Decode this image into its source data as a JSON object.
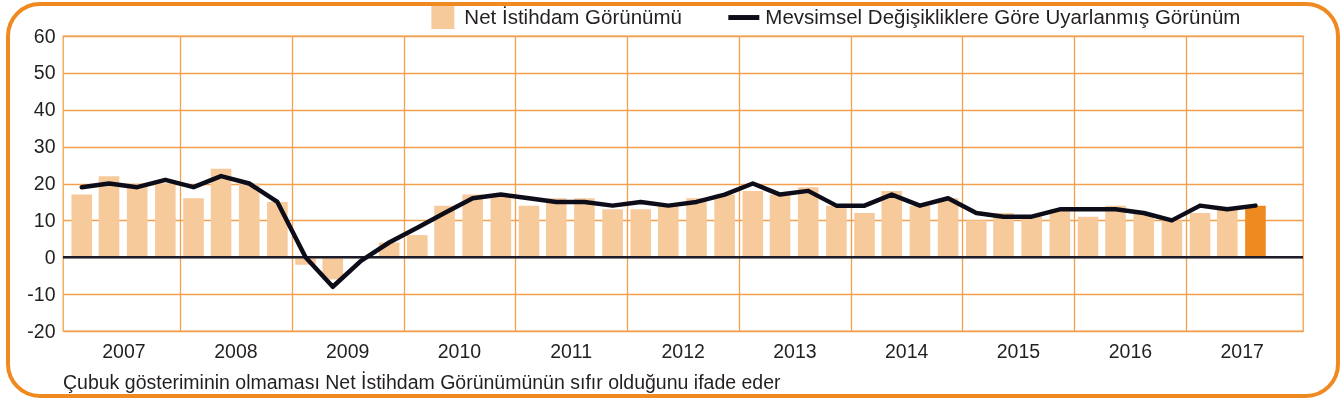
{
  "chart_data": {
    "type": "bar",
    "x": [
      "2007-02-15",
      "2007-05-15",
      "2007-08-15",
      "2007-11-15",
      "2008-02-15",
      "2008-05-15",
      "2008-08-15",
      "2008-11-15",
      "2009-02-15",
      "2009-05-15",
      "2009-08-15",
      "2009-11-15",
      "2010-02-15",
      "2010-05-15",
      "2010-08-15",
      "2010-11-15",
      "2011-02-15",
      "2011-05-15",
      "2011-08-15",
      "2011-11-15",
      "2012-02-15",
      "2012-05-15",
      "2012-08-15",
      "2012-11-15",
      "2013-02-15",
      "2013-05-15",
      "2013-08-15",
      "2013-11-15",
      "2014-02-15",
      "2014-05-15",
      "2014-08-15",
      "2014-11-15",
      "2015-02-15",
      "2015-05-15",
      "2015-08-15",
      "2015-11-15",
      "2016-02-15",
      "2016-05-15",
      "2016-08-15",
      "2016-11-15",
      "2017-02-15",
      "2017-05-15",
      "2017-08-15"
    ],
    "xlim": [
      "2007-01-01",
      "2018-01-01"
    ],
    "xticks": [
      {
        "value": "2007-07-01",
        "label": "2007"
      },
      {
        "value": "2008-01-01",
        "label": null
      },
      {
        "value": "2008-07-01",
        "label": "2008"
      },
      {
        "value": "2009-01-01",
        "label": null
      },
      {
        "value": "2009-07-01",
        "label": "2009"
      },
      {
        "value": "2010-01-01",
        "label": null
      },
      {
        "value": "2010-07-01",
        "label": "2010"
      },
      {
        "value": "2011-01-01",
        "label": null
      },
      {
        "value": "2011-07-01",
        "label": "2011"
      },
      {
        "value": "2012-01-01",
        "label": null
      },
      {
        "value": "2012-07-01",
        "label": "2012"
      },
      {
        "value": "2013-01-01",
        "label": null
      },
      {
        "value": "2013-07-01",
        "label": "2013"
      },
      {
        "value": "2014-01-01",
        "label": null
      },
      {
        "value": "2014-07-01",
        "label": "2014"
      },
      {
        "value": "2015-01-01",
        "label": null
      },
      {
        "value": "2015-07-01",
        "label": "2015"
      },
      {
        "value": "2016-01-01",
        "label": null
      },
      {
        "value": "2016-07-01",
        "label": "2016"
      },
      {
        "value": "2017-01-01",
        "label": null
      },
      {
        "value": "2017-07-01",
        "label": "2017"
      }
    ],
    "ylim": [
      -20,
      60
    ],
    "yticks": [
      -20,
      -10,
      0,
      10,
      20,
      30,
      40,
      50,
      60
    ],
    "series": [
      {
        "name": "Net İstihdam Görünümü",
        "color": "#f7ca9c",
        "colors": [
          "#f7ca9c",
          "#f7ca9c",
          "#f7ca9c",
          "#f7ca9c",
          "#f7ca9c",
          "#f7ca9c",
          "#f7ca9c",
          "#f7ca9c",
          "#f7ca9c",
          "#f7ca9c",
          "#f7ca9c",
          "#f7ca9c",
          "#f7ca9c",
          "#f7ca9c",
          "#f7ca9c",
          "#f7ca9c",
          "#f7ca9c",
          "#f7ca9c",
          "#f7ca9c",
          "#f7ca9c",
          "#f7ca9c",
          "#f7ca9c",
          "#f7ca9c",
          "#f7ca9c",
          "#f7ca9c",
          "#f7ca9c",
          "#f7ca9c",
          "#f7ca9c",
          "#f7ca9c",
          "#f7ca9c",
          "#f7ca9c",
          "#f7ca9c",
          "#f7ca9c",
          "#f7ca9c",
          "#f7ca9c",
          "#f7ca9c",
          "#f7ca9c",
          "#f7ca9c",
          "#f7ca9c",
          "#f7ca9c",
          "#f7ca9c",
          "#f7ca9c",
          "#ee8a1f"
        ],
        "values": [
          17,
          22,
          20,
          20,
          16,
          24,
          20,
          15,
          -2,
          -6,
          0,
          4,
          6,
          14,
          17,
          17,
          14,
          16,
          16,
          13,
          13,
          14,
          16,
          17,
          18,
          17,
          19,
          14,
          12,
          18,
          14,
          16,
          10,
          12,
          11,
          13,
          11,
          14,
          12,
          10,
          12,
          13,
          14
        ]
      },
      {
        "name": "Mevsimsel Değişikliklere Göre Uyarlanmış Görünüm",
        "type": "line",
        "color": "#0d0d1a",
        "values": [
          19,
          20,
          19,
          21,
          19,
          22,
          20,
          15,
          0,
          -8,
          -1,
          4,
          8,
          12,
          16,
          17,
          16,
          15,
          15,
          14,
          15,
          14,
          15,
          17,
          20,
          17,
          18,
          14,
          14,
          17,
          14,
          16,
          12,
          11,
          11,
          13,
          13,
          13,
          12,
          10,
          14,
          13,
          14
        ]
      }
    ],
    "ref_lines": [
      {
        "axis": "y",
        "value": 0,
        "color": "#1c1c2a"
      }
    ],
    "grid": true,
    "legend": "top right",
    "annotations": [
      "Çubuk gösteriminin olmaması Net İstihdam Görünümünün sıfır olduğunu ifade eder"
    ]
  }
}
